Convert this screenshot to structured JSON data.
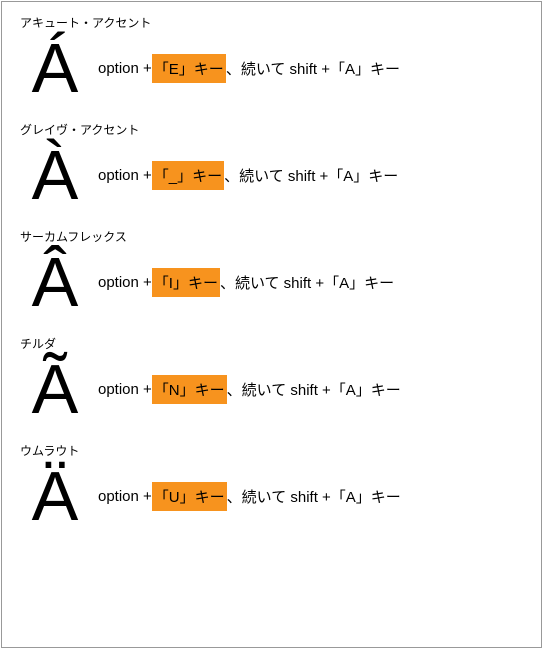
{
  "highlight_color": "#f7931e",
  "rows": [
    {
      "label": "アキュート・アクセント",
      "glyph": "Á",
      "pre": "option +",
      "highlighted": "「E」キー",
      "post": "、続いて shift +「A」キー"
    },
    {
      "label": "グレイヴ・アクセント",
      "glyph": "À",
      "pre": "option +",
      "highlighted": "「_」キー",
      "post": "、続いて shift +「A」キー"
    },
    {
      "label": "サーカムフレックス",
      "glyph": "Â",
      "pre": "option +",
      "highlighted": "「I」キー",
      "post": "、続いて shift +「A」キー"
    },
    {
      "label": "チルダ",
      "glyph": "Ã",
      "pre": "option +",
      "highlighted": "「N」キー",
      "post": "、続いて shift +「A」キー"
    },
    {
      "label": "ウムラウト",
      "glyph": "Ä",
      "pre": "option +",
      "highlighted": "「U」キー",
      "post": "、続いて shift +「A」キー"
    }
  ]
}
